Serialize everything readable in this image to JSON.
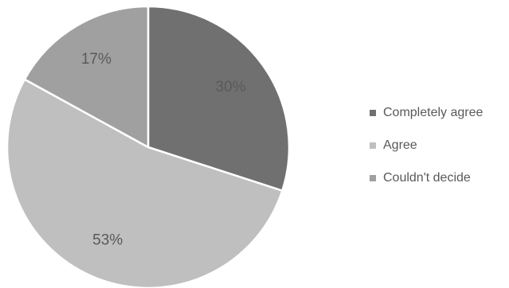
{
  "chart_data": {
    "type": "pie",
    "categories": [
      "Completely agree",
      "Agree",
      "Couldn't decide"
    ],
    "values": [
      30,
      53,
      17
    ],
    "data_labels": [
      "30%",
      "53%",
      "17%"
    ],
    "colors": [
      "#707070",
      "#bfbfbf",
      "#a0a0a0"
    ],
    "slice_border_color": "#ffffff",
    "start_angle_deg": 0,
    "direction": "clockwise",
    "legend": {
      "position": "right",
      "items": [
        "Completely agree",
        "Agree",
        "Couldn't decide"
      ]
    },
    "title": ""
  }
}
